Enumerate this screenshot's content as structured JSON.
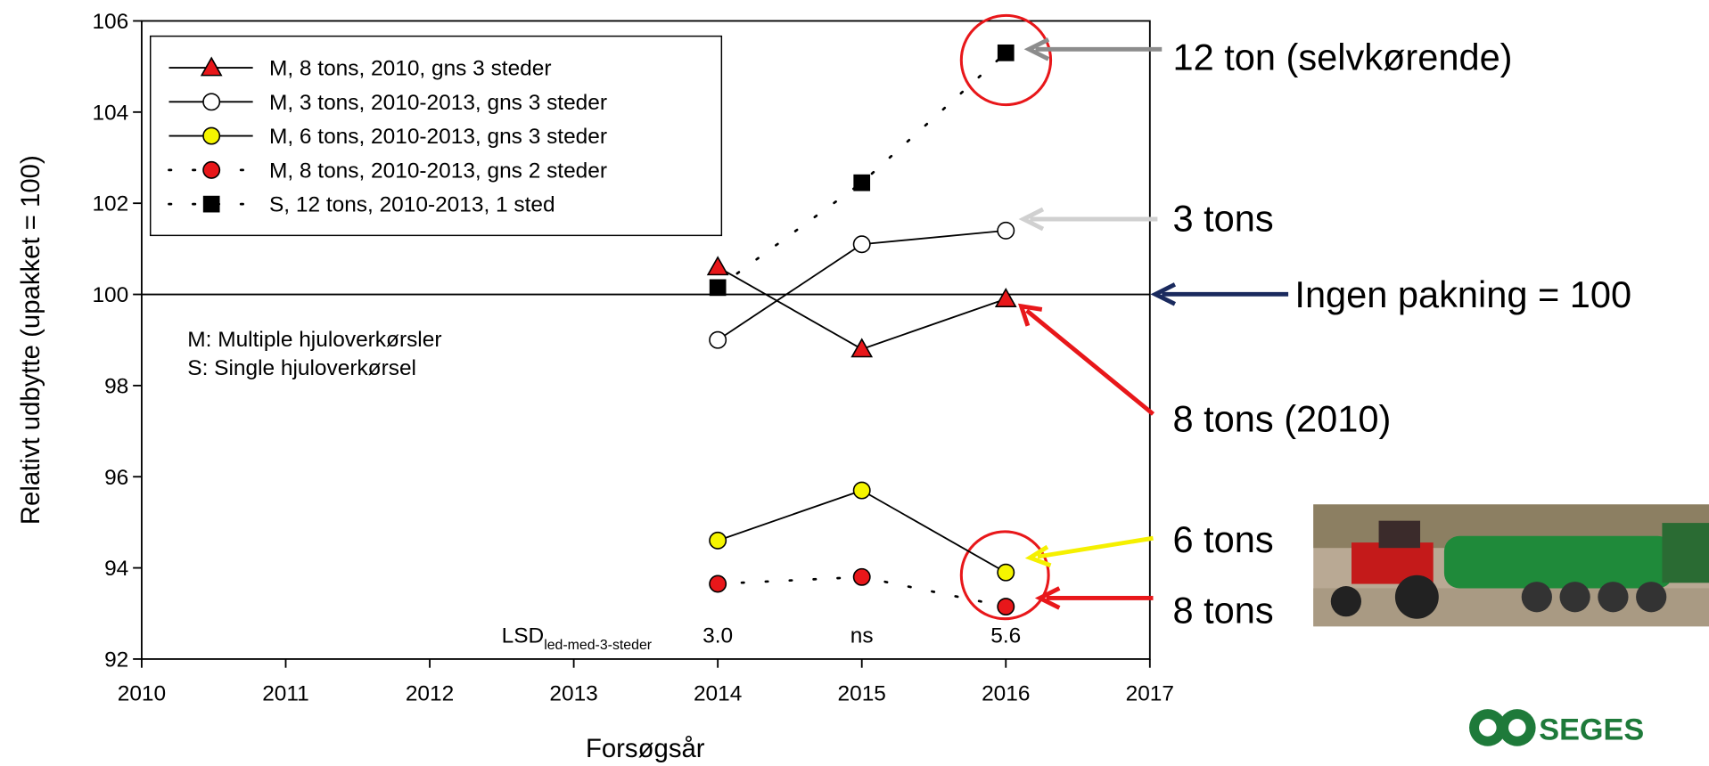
{
  "chart_data": {
    "type": "line",
    "x_label": "Forsøgsår",
    "y_label": "Relativt udbytte (upakket = 100)",
    "x": [
      2014,
      2015,
      2016
    ],
    "xlim": [
      2010,
      2017
    ],
    "xticks": [
      2010,
      2011,
      2012,
      2013,
      2014,
      2015,
      2016,
      2017
    ],
    "ylim": [
      92,
      106
    ],
    "yticks": [
      92,
      94,
      96,
      98,
      100,
      102,
      104,
      106
    ],
    "reference_line": 100,
    "series": [
      {
        "name": "M, 8 tons, 2010, gns 3 steder",
        "color": "#e8171a",
        "marker": "triangle",
        "line_style": "solid",
        "values": [
          100.6,
          98.8,
          99.9
        ]
      },
      {
        "name": "M, 3 tons, 2010-2013, gns 3 steder",
        "color": "#ffffff",
        "marker": "circle",
        "line_style": "solid",
        "values": [
          99.0,
          101.1,
          101.4
        ]
      },
      {
        "name": "M, 6 tons, 2010-2013, gns 3 steder",
        "color": "#f5f500",
        "marker": "circle",
        "line_style": "solid",
        "values": [
          94.6,
          95.7,
          93.9
        ]
      },
      {
        "name": "M, 8 tons, 2010-2013, gns 2 steder",
        "color": "#e8171a",
        "marker": "circle",
        "line_style": "dotted",
        "values": [
          93.65,
          93.8,
          93.15
        ]
      },
      {
        "name": "S, 12 tons, 2010-2013, 1 sted",
        "color": "#000000",
        "marker": "square",
        "line_style": "dotted",
        "values": [
          100.15,
          102.45,
          105.3
        ]
      }
    ],
    "notes": [
      "M: Multiple hjuloverkørsler",
      "S: Single hjuloverkørsel"
    ],
    "lsd": {
      "label": "LSD",
      "subscript": "led-med-3-steder",
      "values": [
        "3.0",
        "ns",
        "5.6"
      ]
    },
    "annotations": [
      "12 ton (selvkørende)",
      "3 tons",
      "Ingen pakning = 100",
      "8 tons (2010)",
      "6 tons",
      "8 tons"
    ],
    "logo": "SEGES"
  }
}
